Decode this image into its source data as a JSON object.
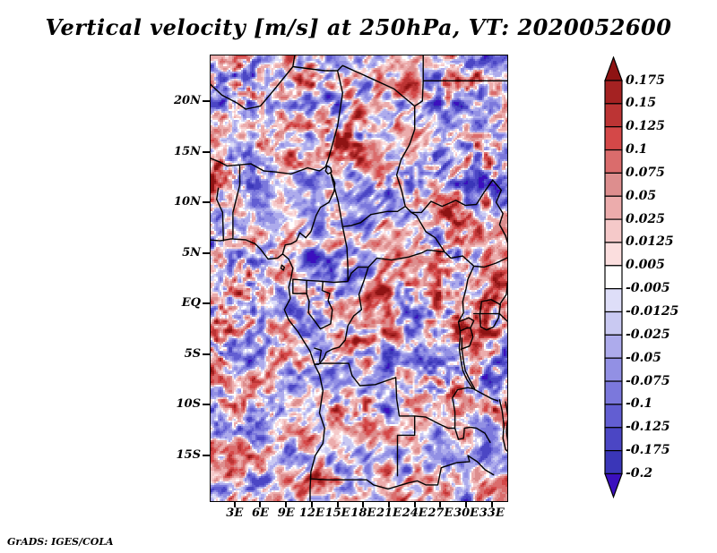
{
  "title": "Vertical velocity [m/s] at 250hPa, VT: 2020052600",
  "attribution": "GrADS: IGES/COLA",
  "chart_data": {
    "type": "heatmap",
    "title": "Vertical velocity [m/s] at 250hPa, VT: 2020052600",
    "variable": "Vertical velocity",
    "units": "m/s",
    "level": "250hPa",
    "valid_time": "2020052600",
    "xlabel": "",
    "ylabel": "",
    "grid": false,
    "x_tick_labels": [
      "3E",
      "6E",
      "9E",
      "12E",
      "15E",
      "18E",
      "21E",
      "24E",
      "27E",
      "30E",
      "33E"
    ],
    "x_tick_lons": [
      3,
      6,
      9,
      12,
      15,
      18,
      21,
      24,
      27,
      30,
      33
    ],
    "y_tick_labels": [
      "20N",
      "15N",
      "10N",
      "5N",
      "EQ",
      "5S",
      "10S",
      "15S"
    ],
    "y_tick_lats": [
      20,
      15,
      10,
      5,
      0,
      -5,
      -10,
      -15
    ],
    "lon_range": [
      0.2,
      34.8
    ],
    "lat_range": [
      -19.5,
      24.5
    ],
    "colorbar": {
      "position": "right",
      "labels": [
        "0.175",
        "0.15",
        "0.125",
        "0.1",
        "0.075",
        "0.05",
        "0.025",
        "0.0125",
        "0.005",
        "-0.005",
        "-0.0125",
        "-0.025",
        "-0.05",
        "-0.075",
        "-0.1",
        "-0.125",
        "-0.175",
        "-0.2"
      ],
      "values": [
        0.175,
        0.15,
        0.125,
        0.1,
        0.075,
        0.05,
        0.025,
        0.0125,
        0.005,
        -0.005,
        -0.0125,
        -0.025,
        -0.05,
        -0.075,
        -0.1,
        -0.125,
        -0.175,
        -0.2
      ],
      "colors": [
        "#8e1313",
        "#a42222",
        "#bc3434",
        "#d44848",
        "#da6c6c",
        "#dd8e8e",
        "#ecacac",
        "#f5c9c9",
        "#fbdede",
        "#ffffff",
        "#dedef8",
        "#c9c9f2",
        "#adabec",
        "#9290e4",
        "#7b78dc",
        "#625ed2",
        "#4b46c4",
        "#3a36b8",
        "#3b0fbe"
      ]
    }
  },
  "map_borders": [
    [
      [
        0,
        6.3
      ],
      [
        1.3,
        6.2
      ],
      [
        2.6,
        6.4
      ],
      [
        4.3,
        6.3
      ],
      [
        5.4,
        5.9
      ],
      [
        6,
        5.4
      ],
      [
        6.9,
        4.4
      ],
      [
        8,
        4.5
      ],
      [
        8.6,
        4.9
      ],
      [
        9.3,
        4.4
      ],
      [
        9.8,
        3.5
      ],
      [
        9.6,
        2.6
      ],
      [
        9.3,
        1.6
      ],
      [
        9.5,
        0.5
      ],
      [
        8.8,
        -0.6
      ],
      [
        9.3,
        -1.6
      ],
      [
        10.4,
        -2.8
      ],
      [
        11.2,
        -3.9
      ],
      [
        11.8,
        -4.7
      ],
      [
        12.3,
        -6
      ],
      [
        12.9,
        -7
      ],
      [
        13.3,
        -8.6
      ],
      [
        12.9,
        -10.8
      ],
      [
        13.5,
        -12.3
      ],
      [
        13.3,
        -13.8
      ],
      [
        12.4,
        -15
      ],
      [
        11.9,
        -16.6
      ],
      [
        11.8,
        -18.2
      ],
      [
        11.8,
        -20.5
      ]
    ],
    [
      [
        8.5,
        3.8
      ],
      [
        8.8,
        3.6
      ],
      [
        8.7,
        3.3
      ],
      [
        8.4,
        3.5
      ],
      [
        8.5,
        3.8
      ]
    ],
    [
      [
        0,
        21.8
      ],
      [
        1.5,
        20.6
      ],
      [
        3.3,
        19.8
      ],
      [
        4.3,
        19.2
      ],
      [
        6,
        19.5
      ],
      [
        7.4,
        20.9
      ],
      [
        9.8,
        23.4
      ],
      [
        10,
        24.5
      ]
    ],
    [
      [
        9.8,
        23.4
      ],
      [
        13.5,
        23
      ],
      [
        15,
        23
      ],
      [
        15.6,
        23.5
      ],
      [
        18.5,
        22.4
      ],
      [
        21.6,
        21.2
      ],
      [
        24,
        19.5
      ]
    ],
    [
      [
        24,
        19.5
      ],
      [
        24.9,
        20
      ],
      [
        25,
        22
      ],
      [
        25,
        24.5
      ]
    ],
    [
      [
        25,
        22
      ],
      [
        35,
        22
      ]
    ],
    [
      [
        15,
        23
      ],
      [
        15.6,
        20.8
      ],
      [
        15,
        17.5
      ],
      [
        13.9,
        14.2
      ],
      [
        13.6,
        13.5
      ]
    ],
    [
      [
        24,
        19.5
      ],
      [
        24,
        17.2
      ],
      [
        23.4,
        15.7
      ],
      [
        22.4,
        14.2
      ],
      [
        21.9,
        12.7
      ],
      [
        22.5,
        11.1
      ],
      [
        22.9,
        9.6
      ],
      [
        23.6,
        9
      ]
    ],
    [
      [
        0,
        14.4
      ],
      [
        1.2,
        14
      ],
      [
        2.1,
        13.6
      ],
      [
        3.6,
        13.7
      ],
      [
        4.9,
        13.8
      ],
      [
        6.4,
        13.1
      ],
      [
        7.8,
        13
      ],
      [
        9.6,
        12.8
      ],
      [
        11.5,
        13.4
      ],
      [
        12.9,
        13.1
      ],
      [
        13.6,
        13.5
      ]
    ],
    [
      [
        13.8,
        13.6
      ],
      [
        14.2,
        13.4
      ],
      [
        14.3,
        13
      ],
      [
        13.9,
        12.8
      ],
      [
        13.6,
        13.1
      ],
      [
        13.8,
        13.6
      ]
    ],
    [
      [
        14.2,
        12.9
      ],
      [
        14.7,
        11.9
      ],
      [
        14.6,
        11.1
      ],
      [
        14,
        10
      ],
      [
        13,
        9.5
      ],
      [
        12.5,
        8.7
      ],
      [
        11.9,
        7.1
      ],
      [
        11.3,
        6.5
      ],
      [
        10.6,
        7
      ],
      [
        10.2,
        6.2
      ],
      [
        9.6,
        5.9
      ],
      [
        8.9,
        5.8
      ],
      [
        8.6,
        4.9
      ]
    ],
    [
      [
        14.2,
        12.9
      ],
      [
        15.1,
        10
      ],
      [
        15.6,
        7.6
      ]
    ],
    [
      [
        15.6,
        7.6
      ],
      [
        16.6,
        7.7
      ],
      [
        17.7,
        8
      ],
      [
        18.9,
        8.8
      ],
      [
        20.8,
        9.1
      ],
      [
        22,
        9.1
      ],
      [
        22.9,
        9.6
      ]
    ],
    [
      [
        15.6,
        7.6
      ],
      [
        16.1,
        5.5
      ],
      [
        16.2,
        3.6
      ],
      [
        16.2,
        2.2
      ]
    ],
    [
      [
        9.8,
        2.4
      ],
      [
        11.4,
        2.3
      ],
      [
        13.3,
        2.2
      ],
      [
        14.6,
        2.1
      ],
      [
        16.2,
        2.2
      ]
    ],
    [
      [
        9.8,
        2.4
      ],
      [
        9.8,
        1
      ],
      [
        11.4,
        1
      ],
      [
        11.4,
        2.3
      ]
    ],
    [
      [
        11.4,
        1
      ],
      [
        11.7,
        0.2
      ],
      [
        11.6,
        -0.9
      ],
      [
        12.5,
        -1.9
      ],
      [
        13,
        -2.5
      ],
      [
        14.2,
        -2
      ],
      [
        14.4,
        -0.6
      ],
      [
        13.9,
        0.3
      ],
      [
        14.1,
        1
      ],
      [
        13.2,
        1.3
      ],
      [
        13.3,
        2.2
      ]
    ],
    [
      [
        18.6,
        3.6
      ],
      [
        18.1,
        2.3
      ],
      [
        17.5,
        0.9
      ],
      [
        17.8,
        -0.6
      ],
      [
        16.9,
        -1.2
      ],
      [
        16.2,
        -2.2
      ],
      [
        15.9,
        -3.6
      ],
      [
        15.2,
        -4.3
      ],
      [
        14.4,
        -4.5
      ],
      [
        13.7,
        -4.8
      ],
      [
        13.4,
        -5.4
      ],
      [
        12.8,
        -6
      ],
      [
        12.3,
        -6
      ]
    ],
    [
      [
        16.2,
        2.2
      ],
      [
        16.6,
        3
      ],
      [
        17.4,
        3.6
      ],
      [
        18.6,
        3.6
      ]
    ],
    [
      [
        18.6,
        3.6
      ],
      [
        19.6,
        4.5
      ],
      [
        21.3,
        4.3
      ],
      [
        23.3,
        4.6
      ],
      [
        24.8,
        5
      ],
      [
        25.5,
        5.3
      ],
      [
        27.5,
        5.1
      ]
    ],
    [
      [
        27.5,
        5.1
      ],
      [
        26.4,
        6.5
      ],
      [
        25.3,
        7.1
      ],
      [
        24.2,
        8.7
      ],
      [
        23.6,
        9
      ]
    ],
    [
      [
        23.6,
        9
      ],
      [
        24.8,
        9
      ],
      [
        25.9,
        10.1
      ],
      [
        27.2,
        9.6
      ],
      [
        28.8,
        10.2
      ],
      [
        29.9,
        9.7
      ],
      [
        31.2,
        9.8
      ],
      [
        32.1,
        11
      ],
      [
        33.1,
        12.2
      ]
    ],
    [
      [
        33.1,
        12.2
      ],
      [
        34.1,
        11.2
      ],
      [
        33.5,
        10
      ],
      [
        34.3,
        8.9
      ],
      [
        33.9,
        7.8
      ],
      [
        34.6,
        6.7
      ],
      [
        35,
        5.6
      ]
    ],
    [
      [
        27.5,
        5.1
      ],
      [
        28.2,
        4.5
      ],
      [
        29.6,
        4.7
      ],
      [
        30.9,
        3.7
      ],
      [
        32.1,
        3.6
      ],
      [
        33.5,
        4
      ],
      [
        35,
        4.6
      ]
    ],
    [
      [
        30.9,
        3.7
      ],
      [
        30.2,
        2.4
      ],
      [
        30,
        1.5
      ],
      [
        29.6,
        0.2
      ],
      [
        29.7,
        -0.9
      ],
      [
        29.1,
        -1.8
      ],
      [
        29.3,
        -2.7
      ],
      [
        29.3,
        -3.3
      ]
    ],
    [
      [
        29.1,
        -1.8
      ],
      [
        30.3,
        -1.4
      ],
      [
        30.9,
        -1.7
      ],
      [
        30.5,
        -2.4
      ],
      [
        30.8,
        -3.3
      ],
      [
        30.4,
        -4.2
      ],
      [
        29.4,
        -4.5
      ]
    ],
    [
      [
        29.3,
        -2.7
      ],
      [
        30.1,
        -2.4
      ],
      [
        30.5,
        -2.4
      ]
    ],
    [
      [
        30.9,
        -1
      ],
      [
        33.9,
        -1
      ]
    ],
    [
      [
        33.9,
        -1
      ],
      [
        35,
        -1.9
      ]
    ],
    [
      [
        33.9,
        -0.1
      ],
      [
        34.7,
        0.9
      ],
      [
        34.9,
        2.5
      ]
    ],
    [
      [
        31.8,
        0.2
      ],
      [
        32.9,
        0.4
      ],
      [
        34,
        -0.1
      ],
      [
        33.8,
        -1.4
      ],
      [
        33.2,
        -2.3
      ],
      [
        32.4,
        -2.6
      ],
      [
        31.7,
        -2.3
      ],
      [
        31.6,
        -1.1
      ],
      [
        31.8,
        0.2
      ]
    ],
    [
      [
        29.3,
        -3.3
      ],
      [
        29.2,
        -4.4
      ],
      [
        29.4,
        -5.6
      ],
      [
        29.6,
        -6.6
      ],
      [
        30.1,
        -7.5
      ],
      [
        30.8,
        -8.4
      ]
    ],
    [
      [
        29.5,
        -3.4
      ],
      [
        29.5,
        -4.5
      ],
      [
        29.7,
        -5.7
      ],
      [
        29.9,
        -6.6
      ],
      [
        30.4,
        -7.5
      ],
      [
        31,
        -8.4
      ]
    ],
    [
      [
        30.8,
        -8.4
      ],
      [
        31.9,
        -8.9
      ],
      [
        33,
        -9.4
      ],
      [
        33.7,
        -9.6
      ]
    ],
    [
      [
        33.9,
        -9.5
      ],
      [
        34.2,
        -10.6
      ],
      [
        34.4,
        -12
      ],
      [
        34.3,
        -13.3
      ],
      [
        34.6,
        -14.4
      ]
    ],
    [
      [
        34.6,
        -9.7
      ],
      [
        34.9,
        -11.2
      ],
      [
        34.7,
        -12.6
      ],
      [
        34.9,
        -13.8
      ]
    ],
    [
      [
        30.8,
        -8.4
      ],
      [
        30.2,
        -8.3
      ],
      [
        29,
        -8.5
      ],
      [
        28.4,
        -9.3
      ],
      [
        28.7,
        -10.7
      ],
      [
        28.7,
        -12.3
      ],
      [
        29.1,
        -13.4
      ],
      [
        29.7,
        -13.3
      ],
      [
        29.8,
        -12.3
      ],
      [
        30.5,
        -12.2
      ]
    ],
    [
      [
        30.5,
        -12.2
      ],
      [
        31.2,
        -12.3
      ],
      [
        32.2,
        -12.8
      ],
      [
        32.8,
        -13.7
      ]
    ],
    [
      [
        30.2,
        -15
      ],
      [
        31.3,
        -15.6
      ],
      [
        32.2,
        -16.4
      ],
      [
        33.2,
        -16.9
      ]
    ],
    [
      [
        12.3,
        -6
      ],
      [
        13.2,
        -5.9
      ],
      [
        16.3,
        -5.9
      ],
      [
        16.7,
        -7.1
      ],
      [
        17.6,
        -8.1
      ],
      [
        19.4,
        -8
      ],
      [
        21.8,
        -7.3
      ],
      [
        21.9,
        -9.4
      ],
      [
        22.2,
        -11.1
      ],
      [
        24,
        -11.1
      ]
    ],
    [
      [
        24,
        -11.1
      ],
      [
        24,
        -13
      ],
      [
        22,
        -13
      ],
      [
        22,
        -17
      ]
    ],
    [
      [
        24,
        -11.1
      ],
      [
        25.3,
        -11.2
      ],
      [
        26.9,
        -11.9
      ],
      [
        27.9,
        -12.3
      ],
      [
        28.7,
        -12.3
      ]
    ],
    [
      [
        11.8,
        -17.3
      ],
      [
        13.9,
        -17.4
      ],
      [
        18.4,
        -17.4
      ],
      [
        19.2,
        -17.9
      ],
      [
        20.9,
        -18.3
      ],
      [
        23.3,
        -17.7
      ],
      [
        24.3,
        -17.5
      ],
      [
        25.3,
        -17.9
      ]
    ],
    [
      [
        25.3,
        -17.9
      ],
      [
        26.7,
        -17.9
      ],
      [
        27.1,
        -16.2
      ],
      [
        28.9,
        -15.7
      ],
      [
        30.4,
        -15.6
      ],
      [
        30.2,
        -15
      ]
    ],
    [
      [
        1.7,
        6.2
      ],
      [
        1.6,
        9
      ],
      [
        0.9,
        10.3
      ],
      [
        1.1,
        11.4
      ]
    ],
    [
      [
        2.8,
        6.4
      ],
      [
        2.8,
        9
      ],
      [
        3.6,
        11.7
      ],
      [
        3.6,
        13.7
      ]
    ],
    [
      [
        12.3,
        -4.4
      ],
      [
        13.1,
        -4.6
      ],
      [
        12.9,
        -5.7
      ]
    ],
    [
      [
        34.6,
        -14.4
      ],
      [
        35,
        -14.7
      ]
    ]
  ]
}
